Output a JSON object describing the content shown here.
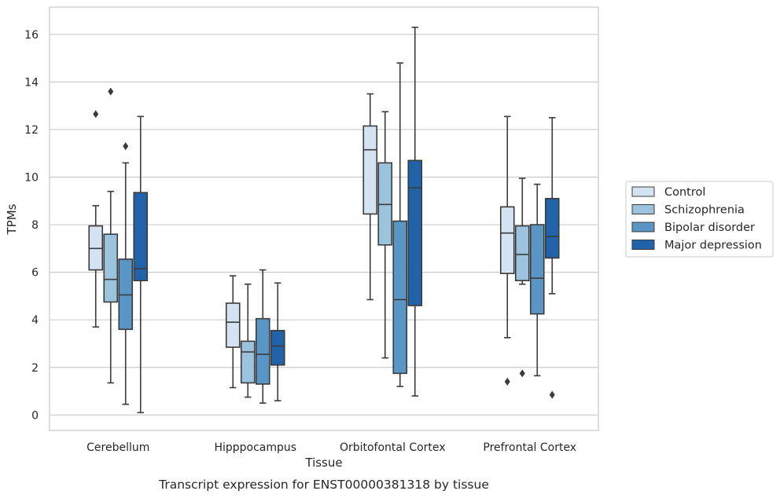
{
  "chart_data": {
    "type": "box",
    "caption": "Transcript expression for ENST00000381318 by tissue",
    "xlabel": "Tissue",
    "ylabel": "TPMs",
    "ylim": [
      -0.65,
      17.15
    ],
    "yticks": [
      0,
      2,
      4,
      6,
      8,
      10,
      12,
      14,
      16
    ],
    "grid": "horizontal",
    "legend_position": "right",
    "categories": [
      "Cerebellum",
      "Hipppocampus",
      "Orbitofontal Cortex",
      "Prefrontal Cortex"
    ],
    "series": [
      {
        "name": "Control",
        "color": "#d4e3f1",
        "boxes": [
          {
            "whislo": 3.7,
            "q1": 6.1,
            "med": 7.0,
            "q3": 7.95,
            "whishi": 8.8,
            "fliers": [
              12.65
            ]
          },
          {
            "whislo": 1.15,
            "q1": 2.85,
            "med": 3.9,
            "q3": 4.7,
            "whishi": 5.85,
            "fliers": []
          },
          {
            "whislo": 4.85,
            "q1": 8.45,
            "med": 11.15,
            "q3": 12.15,
            "whishi": 13.5,
            "fliers": []
          },
          {
            "whislo": 3.25,
            "q1": 5.95,
            "med": 7.65,
            "q3": 8.75,
            "whishi": 12.55,
            "fliers": [
              1.4
            ]
          }
        ]
      },
      {
        "name": "Schizophrenia",
        "color": "#9bc3dd",
        "boxes": [
          {
            "whislo": 1.35,
            "q1": 4.75,
            "med": 5.7,
            "q3": 7.6,
            "whishi": 9.4,
            "fliers": [
              13.6
            ]
          },
          {
            "whislo": 0.75,
            "q1": 1.35,
            "med": 2.65,
            "q3": 3.1,
            "whishi": 5.5,
            "fliers": []
          },
          {
            "whislo": 2.4,
            "q1": 7.15,
            "med": 8.85,
            "q3": 10.6,
            "whishi": 12.75,
            "fliers": []
          },
          {
            "whislo": 5.5,
            "q1": 5.65,
            "med": 6.75,
            "q3": 7.95,
            "whishi": 9.95,
            "fliers": [
              1.75
            ]
          }
        ]
      },
      {
        "name": "Bipolar disorder",
        "color": "#5996c5",
        "boxes": [
          {
            "whislo": 0.45,
            "q1": 3.6,
            "med": 5.05,
            "q3": 6.55,
            "whishi": 10.6,
            "fliers": [
              11.3
            ]
          },
          {
            "whislo": 0.5,
            "q1": 1.3,
            "med": 2.55,
            "q3": 4.05,
            "whishi": 6.1,
            "fliers": []
          },
          {
            "whislo": 1.2,
            "q1": 1.75,
            "med": 4.85,
            "q3": 8.15,
            "whishi": 14.8,
            "fliers": []
          },
          {
            "whislo": 1.65,
            "q1": 4.25,
            "med": 5.75,
            "q3": 8.0,
            "whishi": 9.7,
            "fliers": []
          }
        ]
      },
      {
        "name": "Major depression",
        "color": "#2163a8",
        "boxes": [
          {
            "whislo": 0.1,
            "q1": 5.65,
            "med": 6.15,
            "q3": 9.35,
            "whishi": 12.55,
            "fliers": []
          },
          {
            "whislo": 0.6,
            "q1": 2.1,
            "med": 2.9,
            "q3": 3.55,
            "whishi": 5.55,
            "fliers": []
          },
          {
            "whislo": 0.8,
            "q1": 4.6,
            "med": 9.55,
            "q3": 10.7,
            "whishi": 16.3,
            "fliers": []
          },
          {
            "whislo": 5.1,
            "q1": 6.6,
            "med": 7.5,
            "q3": 9.1,
            "whishi": 12.5,
            "fliers": [
              0.85
            ]
          }
        ]
      }
    ]
  }
}
